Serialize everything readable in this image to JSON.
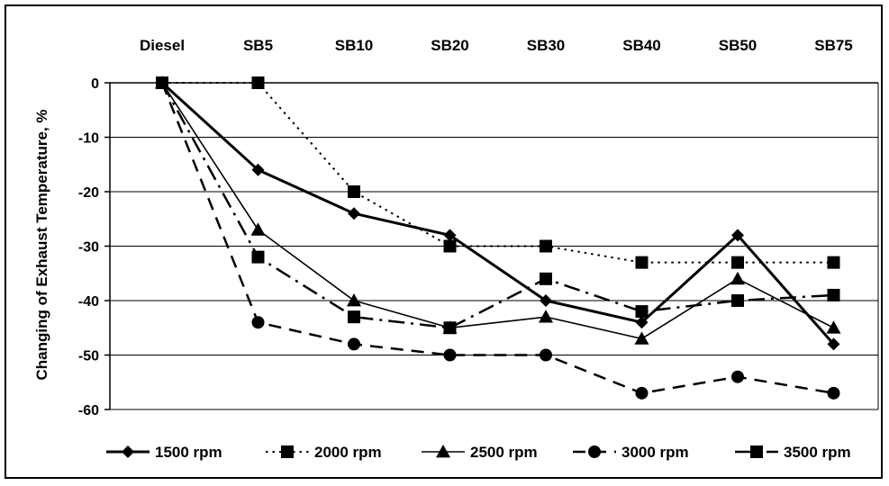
{
  "chart_data": {
    "type": "line",
    "title": "",
    "xlabel": "",
    "ylabel": "Changing of Exhaust Temperature, %",
    "categories": [
      "Diesel",
      "SB5",
      "SB10",
      "SB20",
      "SB30",
      "SB40",
      "SB50",
      "SB75"
    ],
    "x_axis_position": "top",
    "ylim": [
      -60,
      0
    ],
    "yticks": [
      0,
      -10,
      -20,
      -30,
      -40,
      -50,
      -60
    ],
    "grid": "horizontal",
    "legend_position": "bottom",
    "series": [
      {
        "name": "1500 rpm",
        "values": [
          0,
          -16,
          -24,
          -28,
          -40,
          -44,
          -28,
          -48
        ],
        "marker": "diamond",
        "line": "solid",
        "width": 3
      },
      {
        "name": "2000 rpm",
        "values": [
          0,
          0,
          -20,
          -30,
          -30,
          -33,
          -33,
          -33
        ],
        "marker": "square",
        "line": "dotted",
        "width": 2
      },
      {
        "name": "2500 rpm",
        "values": [
          0,
          -27,
          -40,
          -45,
          -43,
          -47,
          -36,
          -45
        ],
        "marker": "triangle",
        "line": "solid",
        "width": 1.6
      },
      {
        "name": "3000 rpm",
        "values": [
          0,
          -44,
          -48,
          -50,
          -50,
          -57,
          -54,
          -57
        ],
        "marker": "circle",
        "line": "dashed",
        "width": 2.5
      },
      {
        "name": "3500 rpm",
        "values": [
          0,
          -32,
          -43,
          -45,
          -36,
          -42,
          -40,
          -39
        ],
        "marker": "square",
        "line": "dashdot",
        "width": 2.5
      }
    ],
    "colors": {
      "line": "#000000",
      "grid": "#000000",
      "background": "#ffffff"
    }
  }
}
